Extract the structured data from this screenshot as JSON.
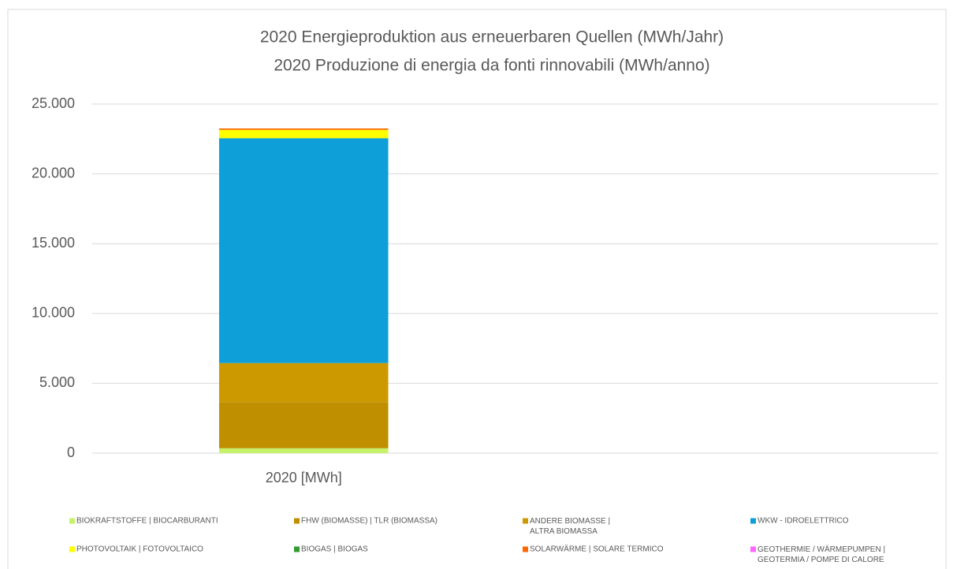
{
  "chart_data": {
    "type": "stacked_bar",
    "title": "2020 Energieproduktion aus erneuerbaren Quellen (MWh/Jahr)",
    "subtitle": "2020 Produzione di energia da fonti rinnovabili (MWh/anno)",
    "categories": [
      "2020 [MWh]"
    ],
    "series": [
      {
        "name": "BIOKRAFTSTOFFE | BIOCARBURANTI",
        "color": "#c5f26b",
        "values": [
          350
        ]
      },
      {
        "name": "FHW (BIOMASSE) | TLR (BIOMASSA)",
        "color": "#bf8f00",
        "values": [
          3300
        ]
      },
      {
        "name": "ANDERE BIOMASSE |\nALTRA BIOMASSA",
        "color": "#cc9a00",
        "values": [
          2800
        ]
      },
      {
        "name": "WKW - IDROELETTRICO",
        "color": "#0f9fd8",
        "values": [
          16100
        ]
      },
      {
        "name": "PHOTOVOLTAIK | FOTOVOLTAICO",
        "color": "#ffff00",
        "values": [
          600
        ]
      },
      {
        "name": "BIOGAS | BIOGAS",
        "color": "#339933",
        "values": [
          0
        ]
      },
      {
        "name": "SOLARWÄRME | SOLARE TERMICO",
        "color": "#ff6600",
        "values": [
          100
        ]
      },
      {
        "name": "GEOTHERMIE / WÄRMEPUMPEN |\nGEOTERMIA /  POMPE DI CALORE",
        "color": "#ff66ff",
        "values": [
          0
        ]
      }
    ],
    "ylim": [
      0,
      25000
    ],
    "yticks": [
      0,
      {
        "value": 5000,
        "label": "5.000"
      },
      {
        "value": 10000,
        "label": "10.000"
      },
      {
        "value": 15000,
        "label": "15.000"
      },
      {
        "value": 20000,
        "label": "20.000"
      },
      {
        "value": 25000,
        "label": "25.000"
      }
    ],
    "grid": true,
    "legend": "bottom"
  }
}
